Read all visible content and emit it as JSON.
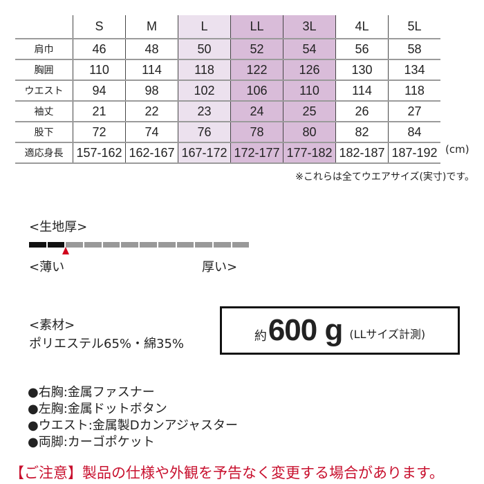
{
  "size_table": {
    "columns": [
      "S",
      "M",
      "L",
      "LL",
      "3L",
      "4L",
      "5L"
    ],
    "rows": [
      {
        "label": "肩巾",
        "values": [
          "46",
          "48",
          "50",
          "52",
          "54",
          "56",
          "58"
        ]
      },
      {
        "label": "胸囲",
        "values": [
          "110",
          "114",
          "118",
          "122",
          "126",
          "130",
          "134"
        ]
      },
      {
        "label": "ウエスト",
        "values": [
          "94",
          "98",
          "102",
          "106",
          "110",
          "114",
          "118"
        ]
      },
      {
        "label": "袖丈",
        "values": [
          "21",
          "22",
          "23",
          "24",
          "25",
          "26",
          "27"
        ]
      },
      {
        "label": "股下",
        "values": [
          "72",
          "74",
          "76",
          "78",
          "80",
          "82",
          "84"
        ]
      },
      {
        "label": "適応身長",
        "values": [
          "157-162",
          "162-167",
          "167-172",
          "172-177",
          "177-182",
          "182-187",
          "187-192"
        ]
      }
    ],
    "unit": "(cm)",
    "note": "※これらは全てウエアサイズ(実寸)です。",
    "highlight_colors": {
      "3L": "#ece1ee",
      "4L": "#d9bcd9",
      "5L": "#d9bcd9"
    }
  },
  "thickness": {
    "title": "<生地厚>",
    "level": 2,
    "segments": 12,
    "thin_label": "<薄い",
    "thick_label": "厚い>",
    "marker_color": "#d0021b"
  },
  "material": {
    "title": "<素材>",
    "composition": "ポリエステル65%・綿35%"
  },
  "weight": {
    "prefix": "約",
    "value": "600 g",
    "suffix": "(LLサイズ計測)"
  },
  "features": [
    "●右胸:金属ファスナー",
    "●左胸:金属ドットボタン",
    "●ウエスト:金属製Dカンアジャスター",
    "●両脚:カーゴポケット"
  ],
  "notice": {
    "text": "【ご注意】製品の仕様や外観を予告なく変更する場合があります。",
    "color": "#c8102e"
  }
}
